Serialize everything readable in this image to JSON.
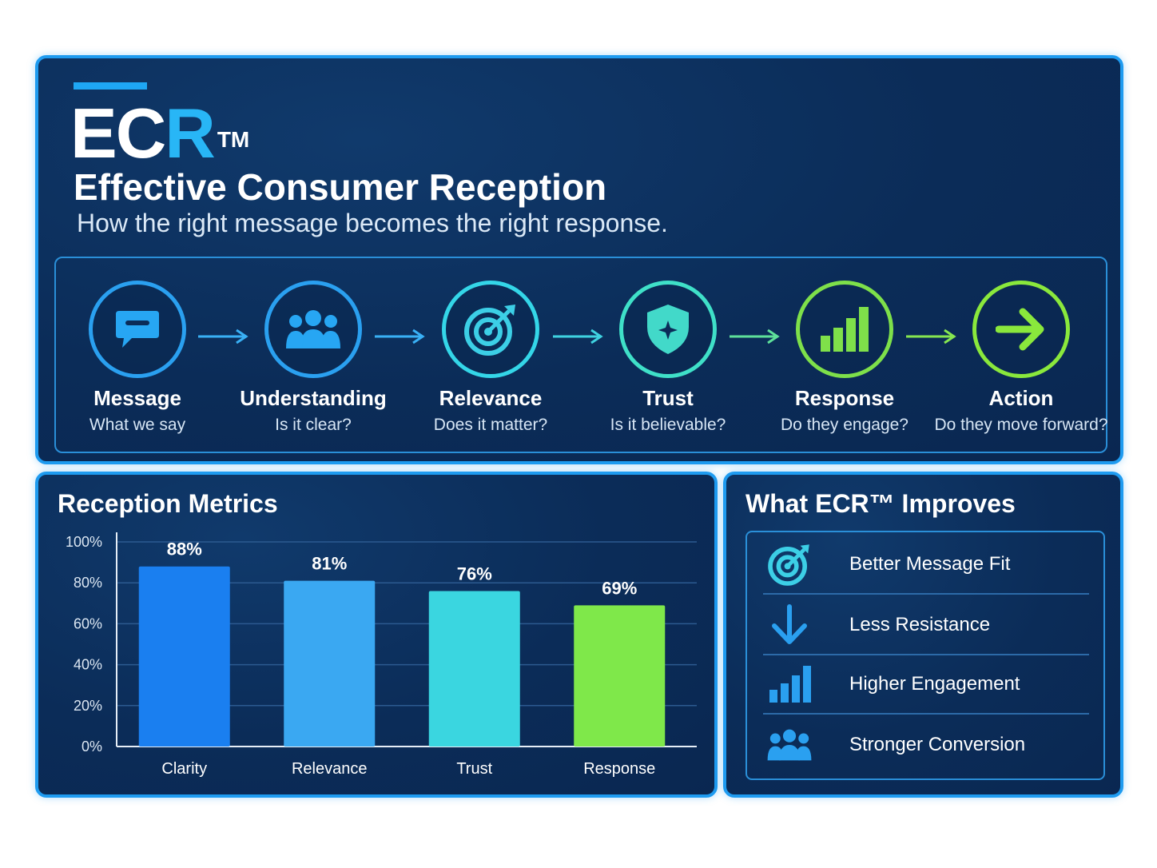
{
  "header": {
    "logo_ec": "EC",
    "logo_r": "R",
    "logo_tm": "TM",
    "title": "Effective Consumer Reception",
    "tagline": "How the right message becomes the right response."
  },
  "flow": [
    {
      "name": "Message",
      "question": "What we say",
      "icon": "speech-bubble-icon",
      "color": "#2aa0f0"
    },
    {
      "name": "Understanding",
      "question": "Is it clear?",
      "icon": "people-group-icon",
      "color": "#2aa0f0"
    },
    {
      "name": "Relevance",
      "question": "Does it matter?",
      "icon": "target-icon",
      "color": "#34d6e8"
    },
    {
      "name": "Trust",
      "question": "Is it believable?",
      "icon": "shield-icon",
      "color": "#3fe0c8"
    },
    {
      "name": "Response",
      "question": "Do they engage?",
      "icon": "bar-chart-icon",
      "color": "#7ee04a"
    },
    {
      "name": "Action",
      "question": "Do they move forward?",
      "icon": "arrow-right-icon",
      "color": "#8ae83c"
    }
  ],
  "metrics": {
    "title": "Reception Metrics"
  },
  "chart_data": {
    "type": "bar",
    "categories": [
      "Clarity",
      "Relevance",
      "Trust",
      "Response"
    ],
    "values": [
      88,
      81,
      76,
      69
    ],
    "value_labels": [
      "88%",
      "81%",
      "76%",
      "69%"
    ],
    "ylim": [
      0,
      100
    ],
    "yticks": [
      0,
      20,
      40,
      60,
      80,
      100
    ],
    "ytick_labels": [
      "0%",
      "20%",
      "40%",
      "60%",
      "80%",
      "100%"
    ],
    "grid": true,
    "colors": [
      "#1a7ff0",
      "#3aa8f2",
      "#3ad6e0",
      "#7fe84a"
    ]
  },
  "improves": {
    "title": "What ECR™ Improves",
    "items": [
      {
        "label": "Better Message Fit",
        "icon": "target-icon"
      },
      {
        "label": "Less Resistance",
        "icon": "arrow-down-icon"
      },
      {
        "label": "Higher Engagement",
        "icon": "bar-chart-icon"
      },
      {
        "label": "Stronger Conversion",
        "icon": "people-group-icon"
      }
    ]
  }
}
